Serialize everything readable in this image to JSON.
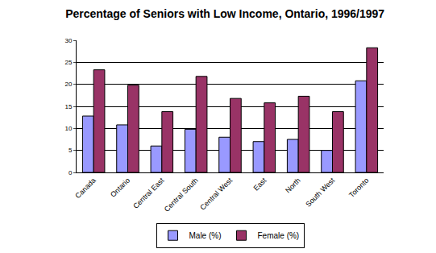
{
  "chart_data": {
    "type": "bar",
    "title": "Percentage of Seniors with Low Income, Ontario, 1996/1997",
    "categories": [
      "Canada",
      "Ontario",
      "Central East",
      "Central South",
      "Central West",
      "East",
      "North",
      "South West",
      "Toronto"
    ],
    "series": [
      {
        "name": "Male (%)",
        "color": "#9999ff",
        "values": [
          12.8,
          10.8,
          6,
          9.8,
          8,
          7,
          7.5,
          5,
          20.8
        ]
      },
      {
        "name": "Female (%)",
        "color": "#993366",
        "values": [
          23.3,
          19.8,
          13.8,
          21.8,
          16.8,
          15.8,
          17.3,
          13.8,
          28.3
        ]
      }
    ],
    "ylim": [
      0,
      30
    ],
    "yticks": [
      0,
      5,
      10,
      15,
      20,
      25,
      30
    ],
    "grid": true,
    "legend": "bottom"
  }
}
